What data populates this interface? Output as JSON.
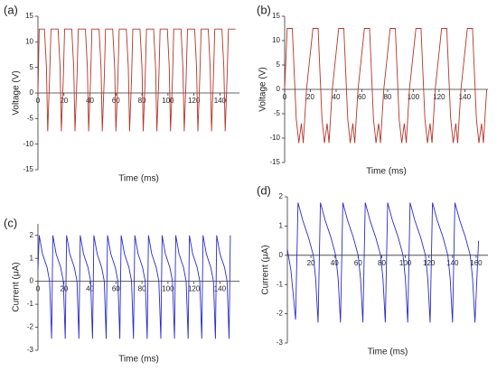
{
  "chart_data": [
    {
      "type": "line",
      "label": "(a)",
      "xlabel": "Time (ms)",
      "ylabel": "Voltage (V)",
      "color": "#b5342a",
      "xlim": [
        0,
        155
      ],
      "ylim": [
        -15,
        15
      ],
      "xticks": [
        0,
        20,
        40,
        60,
        80,
        100,
        120,
        140
      ],
      "yticks": [
        -15,
        -10,
        -5,
        0,
        5,
        10,
        15
      ],
      "x": [
        0,
        1,
        5,
        6.5,
        7.5,
        9,
        10,
        15.5,
        17,
        18,
        19.5,
        20.5,
        26,
        27.5,
        28.5,
        30,
        31,
        36.5,
        38,
        39,
        40.5,
        41.5,
        47,
        48.5,
        49.5,
        51,
        52,
        57.5,
        59,
        60,
        61.5,
        62.5,
        68,
        69.5,
        70.5,
        72,
        73,
        78.5,
        80,
        81,
        82.5,
        83.5,
        89,
        90.5,
        91.5,
        93,
        94,
        99.5,
        101,
        102,
        103.5,
        104.5,
        110,
        111.5,
        112.5,
        114,
        115,
        120.5,
        122,
        123,
        124.5,
        125.5,
        131,
        132.5,
        133.5,
        135,
        136,
        141.5,
        143,
        144,
        145.5,
        146.5,
        152
      ],
      "values": [
        0,
        12.5,
        12.5,
        5,
        -7.5,
        3,
        12.5,
        12.5,
        5,
        -7.5,
        3,
        12.5,
        12.5,
        5,
        -7.5,
        3,
        12.5,
        12.5,
        5,
        -7.5,
        3,
        12.5,
        12.5,
        5,
        -7.5,
        3,
        12.5,
        12.5,
        5,
        -7.5,
        3,
        12.5,
        12.5,
        5,
        -7.5,
        3,
        12.5,
        12.5,
        5,
        -7.5,
        3,
        12.5,
        12.5,
        5,
        -7.5,
        3,
        12.5,
        12.5,
        5,
        -7.5,
        3,
        12.5,
        12.5,
        5,
        -7.5,
        3,
        12.5,
        12.5,
        5,
        -7.5,
        3,
        12.5,
        12.5,
        5,
        -7.5,
        3,
        12.5,
        12.5,
        5,
        -7.5,
        3,
        12.5,
        12.5
      ]
    },
    {
      "type": "line",
      "label": "(b)",
      "xlabel": "Time (ms)",
      "ylabel": "Voltage (V)",
      "color": "#b5342a",
      "xlim": [
        0,
        158
      ],
      "ylim": [
        -15,
        15
      ],
      "xticks": [
        0,
        20,
        40,
        60,
        80,
        100,
        120,
        140
      ],
      "yticks": [
        -15,
        -10,
        -5,
        0,
        5,
        10,
        15
      ],
      "x": [
        0,
        2,
        6,
        9,
        11,
        13,
        14.5,
        17,
        22,
        26,
        29,
        31,
        33,
        34.5,
        37,
        42,
        46,
        49,
        51,
        53,
        54.5,
        57,
        62,
        66,
        69,
        71,
        73,
        74.5,
        77,
        82,
        86,
        89,
        91,
        93,
        94.5,
        97,
        102,
        106,
        109,
        111,
        113,
        114.5,
        117,
        122,
        126,
        129,
        131,
        133,
        134.5,
        137,
        142,
        146,
        149,
        151,
        153,
        154.5,
        157
      ],
      "values": [
        0,
        12.5,
        12.5,
        -6,
        -11,
        -7,
        -11,
        0,
        12.5,
        12.5,
        -6,
        -11,
        -7,
        -11,
        0,
        12.5,
        12.5,
        -6,
        -11,
        -7,
        -11,
        0,
        12.5,
        12.5,
        -6,
        -11,
        -7,
        -11,
        0,
        12.5,
        12.5,
        -6,
        -11,
        -7,
        -11,
        0,
        12.5,
        12.5,
        -6,
        -11,
        -7,
        -11,
        0,
        12.5,
        12.5,
        -6,
        -11,
        -7,
        -11,
        0,
        12.5,
        12.5,
        -6,
        -11,
        -7,
        -11,
        0
      ]
    },
    {
      "type": "line",
      "label": "(c)",
      "xlabel": "Time (ms)",
      "ylabel": "Current (μA)",
      "color": "#2a2ad0",
      "xlim": [
        0,
        155
      ],
      "ylim": [
        -3,
        2.5
      ],
      "xticks": [
        0,
        20,
        40,
        60,
        80,
        100,
        120,
        140
      ],
      "yticks": [
        -3,
        -2,
        -1,
        0,
        1,
        2
      ],
      "x": [
        0,
        1,
        3.5,
        7,
        9,
        10.5,
        11.5,
        14,
        17.5,
        19.5,
        21,
        22,
        24.5,
        28,
        30,
        31.5,
        32.5,
        35,
        38.5,
        40.5,
        42,
        43,
        45.5,
        49,
        51,
        52.5,
        53.5,
        56,
        59.5,
        61.5,
        63,
        64,
        66.5,
        70,
        72,
        73.5,
        74.5,
        77,
        80.5,
        82.5,
        84,
        85,
        87.5,
        91,
        93,
        94.5,
        95.5,
        98,
        101.5,
        103.5,
        105,
        106,
        108.5,
        112,
        114,
        115.5,
        116.5,
        119,
        122.5,
        124.5,
        126,
        127,
        129.5,
        133,
        135,
        136.5,
        137.5,
        140,
        143.5,
        145.5,
        147,
        148
      ],
      "values": [
        0.5,
        2,
        1.2,
        0.6,
        0,
        -2.5,
        2,
        1.2,
        0.6,
        0,
        -2.5,
        2,
        1.2,
        0.6,
        0,
        -2.5,
        2,
        1.2,
        0.6,
        0,
        -2.5,
        2,
        1.2,
        0.6,
        0,
        -2.5,
        2,
        1.2,
        0.6,
        0,
        -2.5,
        2,
        1.2,
        0.6,
        0,
        -2.5,
        2,
        1.2,
        0.6,
        0,
        -2.5,
        2,
        1.2,
        0.6,
        0,
        -2.5,
        2,
        1.2,
        0.6,
        0,
        -2.5,
        2,
        1.2,
        0.6,
        0,
        -2.5,
        2,
        1.2,
        0.6,
        0,
        -2.5,
        2,
        1.2,
        0.6,
        0,
        -2.5,
        2,
        1.2,
        0.6,
        0,
        -2.5,
        2
      ]
    },
    {
      "type": "line",
      "label": "(d)",
      "xlabel": "Time (ms)",
      "ylabel": "Current (μA)",
      "color": "#2a2ad0",
      "xlim": [
        0,
        170
      ],
      "ylim": [
        -3,
        2
      ],
      "xticks": [
        20,
        40,
        60,
        80,
        100,
        120,
        140,
        160
      ],
      "yticks": [
        -3,
        -2,
        -1,
        0,
        1,
        2
      ],
      "x": [
        0,
        3,
        7,
        9,
        13,
        18,
        22,
        24,
        26,
        28,
        32,
        37,
        41,
        43,
        45,
        47,
        51,
        56,
        60,
        62,
        64,
        66,
        70,
        75,
        79,
        81,
        83,
        85,
        89,
        94,
        98,
        100,
        102,
        104,
        108,
        113,
        117,
        119,
        121,
        123,
        127,
        132,
        136,
        138,
        140,
        142,
        146,
        151,
        155,
        157,
        159,
        162
      ],
      "values": [
        0.2,
        -0.5,
        -2.2,
        1.8,
        1.2,
        0.6,
        0,
        -0.8,
        -2.3,
        1.8,
        1.2,
        0.6,
        0,
        -0.8,
        -2.3,
        1.8,
        1.2,
        0.6,
        0,
        -0.8,
        -2.3,
        1.8,
        1.2,
        0.6,
        0,
        -0.8,
        -2.3,
        1.8,
        1.2,
        0.6,
        0,
        -0.8,
        -2.3,
        1.8,
        1.2,
        0.6,
        0,
        -0.8,
        -2.3,
        1.8,
        1.2,
        0.6,
        0,
        -0.8,
        -2.3,
        1.8,
        1.2,
        0.6,
        0,
        -0.8,
        -2.3,
        0.5
      ]
    }
  ]
}
